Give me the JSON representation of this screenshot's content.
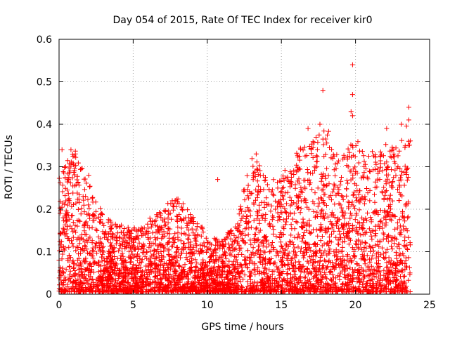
{
  "chart_data": {
    "type": "scatter",
    "title": "Day 054 of 2015, Rate Of TEC Index for receiver kir0",
    "xlabel": "GPS time / hours",
    "ylabel": "ROTI / TECUs",
    "xlim": [
      0,
      25
    ],
    "ylim": [
      0,
      0.6
    ],
    "xticks": [
      "0",
      "5",
      "10",
      "15",
      "20",
      "25"
    ],
    "yticks": [
      "0",
      "0.1",
      "0.2",
      "0.3",
      "0.4",
      "0.5",
      "0.6"
    ],
    "xtick_values": [
      0,
      5,
      10,
      15,
      20,
      25
    ],
    "ytick_values": [
      0,
      0.1,
      0.2,
      0.3,
      0.4,
      0.5,
      0.6
    ],
    "grid": true,
    "marker": "+",
    "color": "#ff0000",
    "envelope_hours": [
      0,
      1,
      2,
      3,
      4,
      5,
      6,
      7,
      8,
      9,
      10,
      11,
      12,
      13,
      14,
      15,
      16,
      17,
      18,
      19,
      20,
      21,
      22,
      23,
      23.7
    ],
    "envelope_max": [
      0.27,
      0.34,
      0.26,
      0.18,
      0.16,
      0.15,
      0.17,
      0.2,
      0.23,
      0.18,
      0.14,
      0.12,
      0.17,
      0.33,
      0.27,
      0.27,
      0.34,
      0.35,
      0.4,
      0.32,
      0.36,
      0.33,
      0.35,
      0.34,
      0.44
    ],
    "notable_points": [
      {
        "x": 0.2,
        "y": 0.34
      },
      {
        "x": 0.8,
        "y": 0.34
      },
      {
        "x": 1.1,
        "y": 0.33
      },
      {
        "x": 2.0,
        "y": 0.28
      },
      {
        "x": 10.7,
        "y": 0.27
      },
      {
        "x": 13.3,
        "y": 0.33
      },
      {
        "x": 16.8,
        "y": 0.39
      },
      {
        "x": 17.8,
        "y": 0.48
      },
      {
        "x": 17.6,
        "y": 0.4
      },
      {
        "x": 19.8,
        "y": 0.54
      },
      {
        "x": 19.8,
        "y": 0.47
      },
      {
        "x": 19.7,
        "y": 0.43
      },
      {
        "x": 19.8,
        "y": 0.42
      },
      {
        "x": 22.1,
        "y": 0.39
      },
      {
        "x": 23.1,
        "y": 0.4
      },
      {
        "x": 23.6,
        "y": 0.44
      },
      {
        "x": 23.6,
        "y": 0.41
      },
      {
        "x": 23.6,
        "y": 0.36
      }
    ]
  }
}
